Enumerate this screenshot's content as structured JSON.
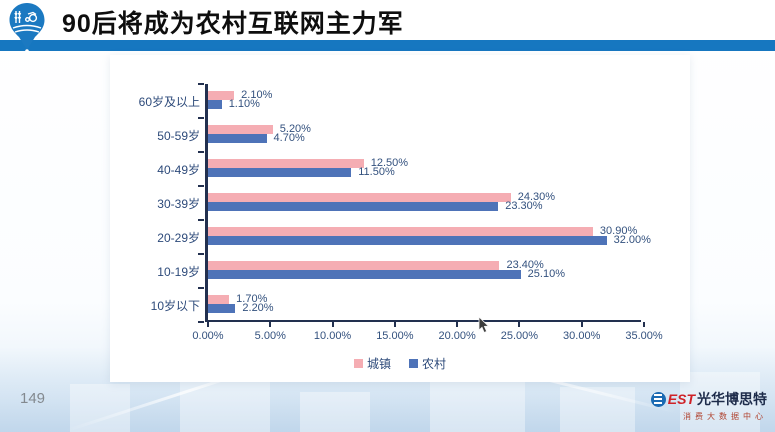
{
  "header": {
    "title": "90后将成为农村互联网主力军"
  },
  "chart_data": {
    "type": "bar",
    "orientation": "horizontal",
    "categories": [
      "60岁及以上",
      "50-59岁",
      "40-49岁",
      "30-39岁",
      "20-29岁",
      "10-19岁",
      "10岁以下"
    ],
    "series": [
      {
        "name": "城镇",
        "color": "#f5adb3",
        "values": [
          2.1,
          5.2,
          12.5,
          24.3,
          30.9,
          23.4,
          1.7
        ],
        "labels": [
          "2.10%",
          "5.20%",
          "12.50%",
          "24.30%",
          "30.90%",
          "23.40%",
          "1.70%"
        ]
      },
      {
        "name": "农村",
        "color": "#4e73b8",
        "values": [
          1.1,
          4.7,
          11.5,
          23.3,
          32.0,
          25.1,
          2.2
        ],
        "labels": [
          "1.10%",
          "4.70%",
          "11.50%",
          "23.30%",
          "32.00%",
          "25.10%",
          "2.20%"
        ]
      }
    ],
    "x_ticks": [
      "0.00%",
      "5.00%",
      "10.00%",
      "15.00%",
      "20.00%",
      "25.00%",
      "30.00%",
      "35.00%"
    ],
    "xlim": [
      0,
      35
    ],
    "grid": false,
    "legend_position": "bottom",
    "axis_color": "#22304f",
    "label_color": "#33517e"
  },
  "footer": {
    "page_number": "149",
    "brand_mark": "EST",
    "brand_name": "光华博思特",
    "brand_subtitle": "消费大数据中心"
  }
}
